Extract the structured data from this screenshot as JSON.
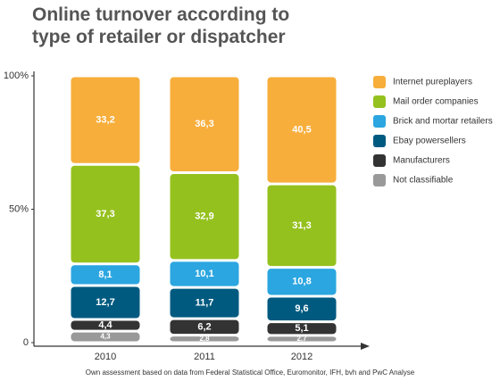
{
  "chart_data": {
    "type": "stacked_bar",
    "title": "Online turnover according to type of retailer or dispatcher",
    "categories": [
      "2010",
      "2011",
      "2012"
    ],
    "series": [
      {
        "name": "Internet pureplayers",
        "color": "#f7ae3b",
        "values": [
          33.2,
          36.3,
          40.5
        ],
        "value_labels": [
          "33,2",
          "36,3",
          "40,5"
        ]
      },
      {
        "name": "Mail order companies",
        "color": "#95c11f",
        "values": [
          37.3,
          32.9,
          31.3
        ],
        "value_labels": [
          "37,3",
          "32,9",
          "31,3"
        ]
      },
      {
        "name": "Brick and mortar retailers",
        "color": "#2ba6e0",
        "values": [
          8.1,
          10.1,
          10.8
        ],
        "value_labels": [
          "8,1",
          "10,1",
          "10,8"
        ]
      },
      {
        "name": "Ebay powersellers",
        "color": "#005a80",
        "values": [
          12.7,
          11.7,
          9.6
        ],
        "value_labels": [
          "12,7",
          "11,7",
          "9,6"
        ]
      },
      {
        "name": "Manufacturers",
        "color": "#333333",
        "values": [
          4.4,
          6.2,
          5.1
        ],
        "value_labels": [
          "4,4",
          "6,2",
          "5,1"
        ]
      },
      {
        "name": "Not classifiable",
        "color": "#999999",
        "values": [
          4.3,
          2.8,
          2.7
        ],
        "value_labels": [
          "4,3",
          "2,8",
          "2,7"
        ]
      }
    ],
    "ylim": [
      0,
      100
    ],
    "yticks": [
      0,
      {
        "value": 50,
        "label": "50%"
      },
      {
        "value": 100,
        "label": "100%"
      }
    ],
    "footnote": "Own assessment based on data from Federal Statistical Office, Euromonitor, IFH, bvh and PwC Analyse"
  }
}
